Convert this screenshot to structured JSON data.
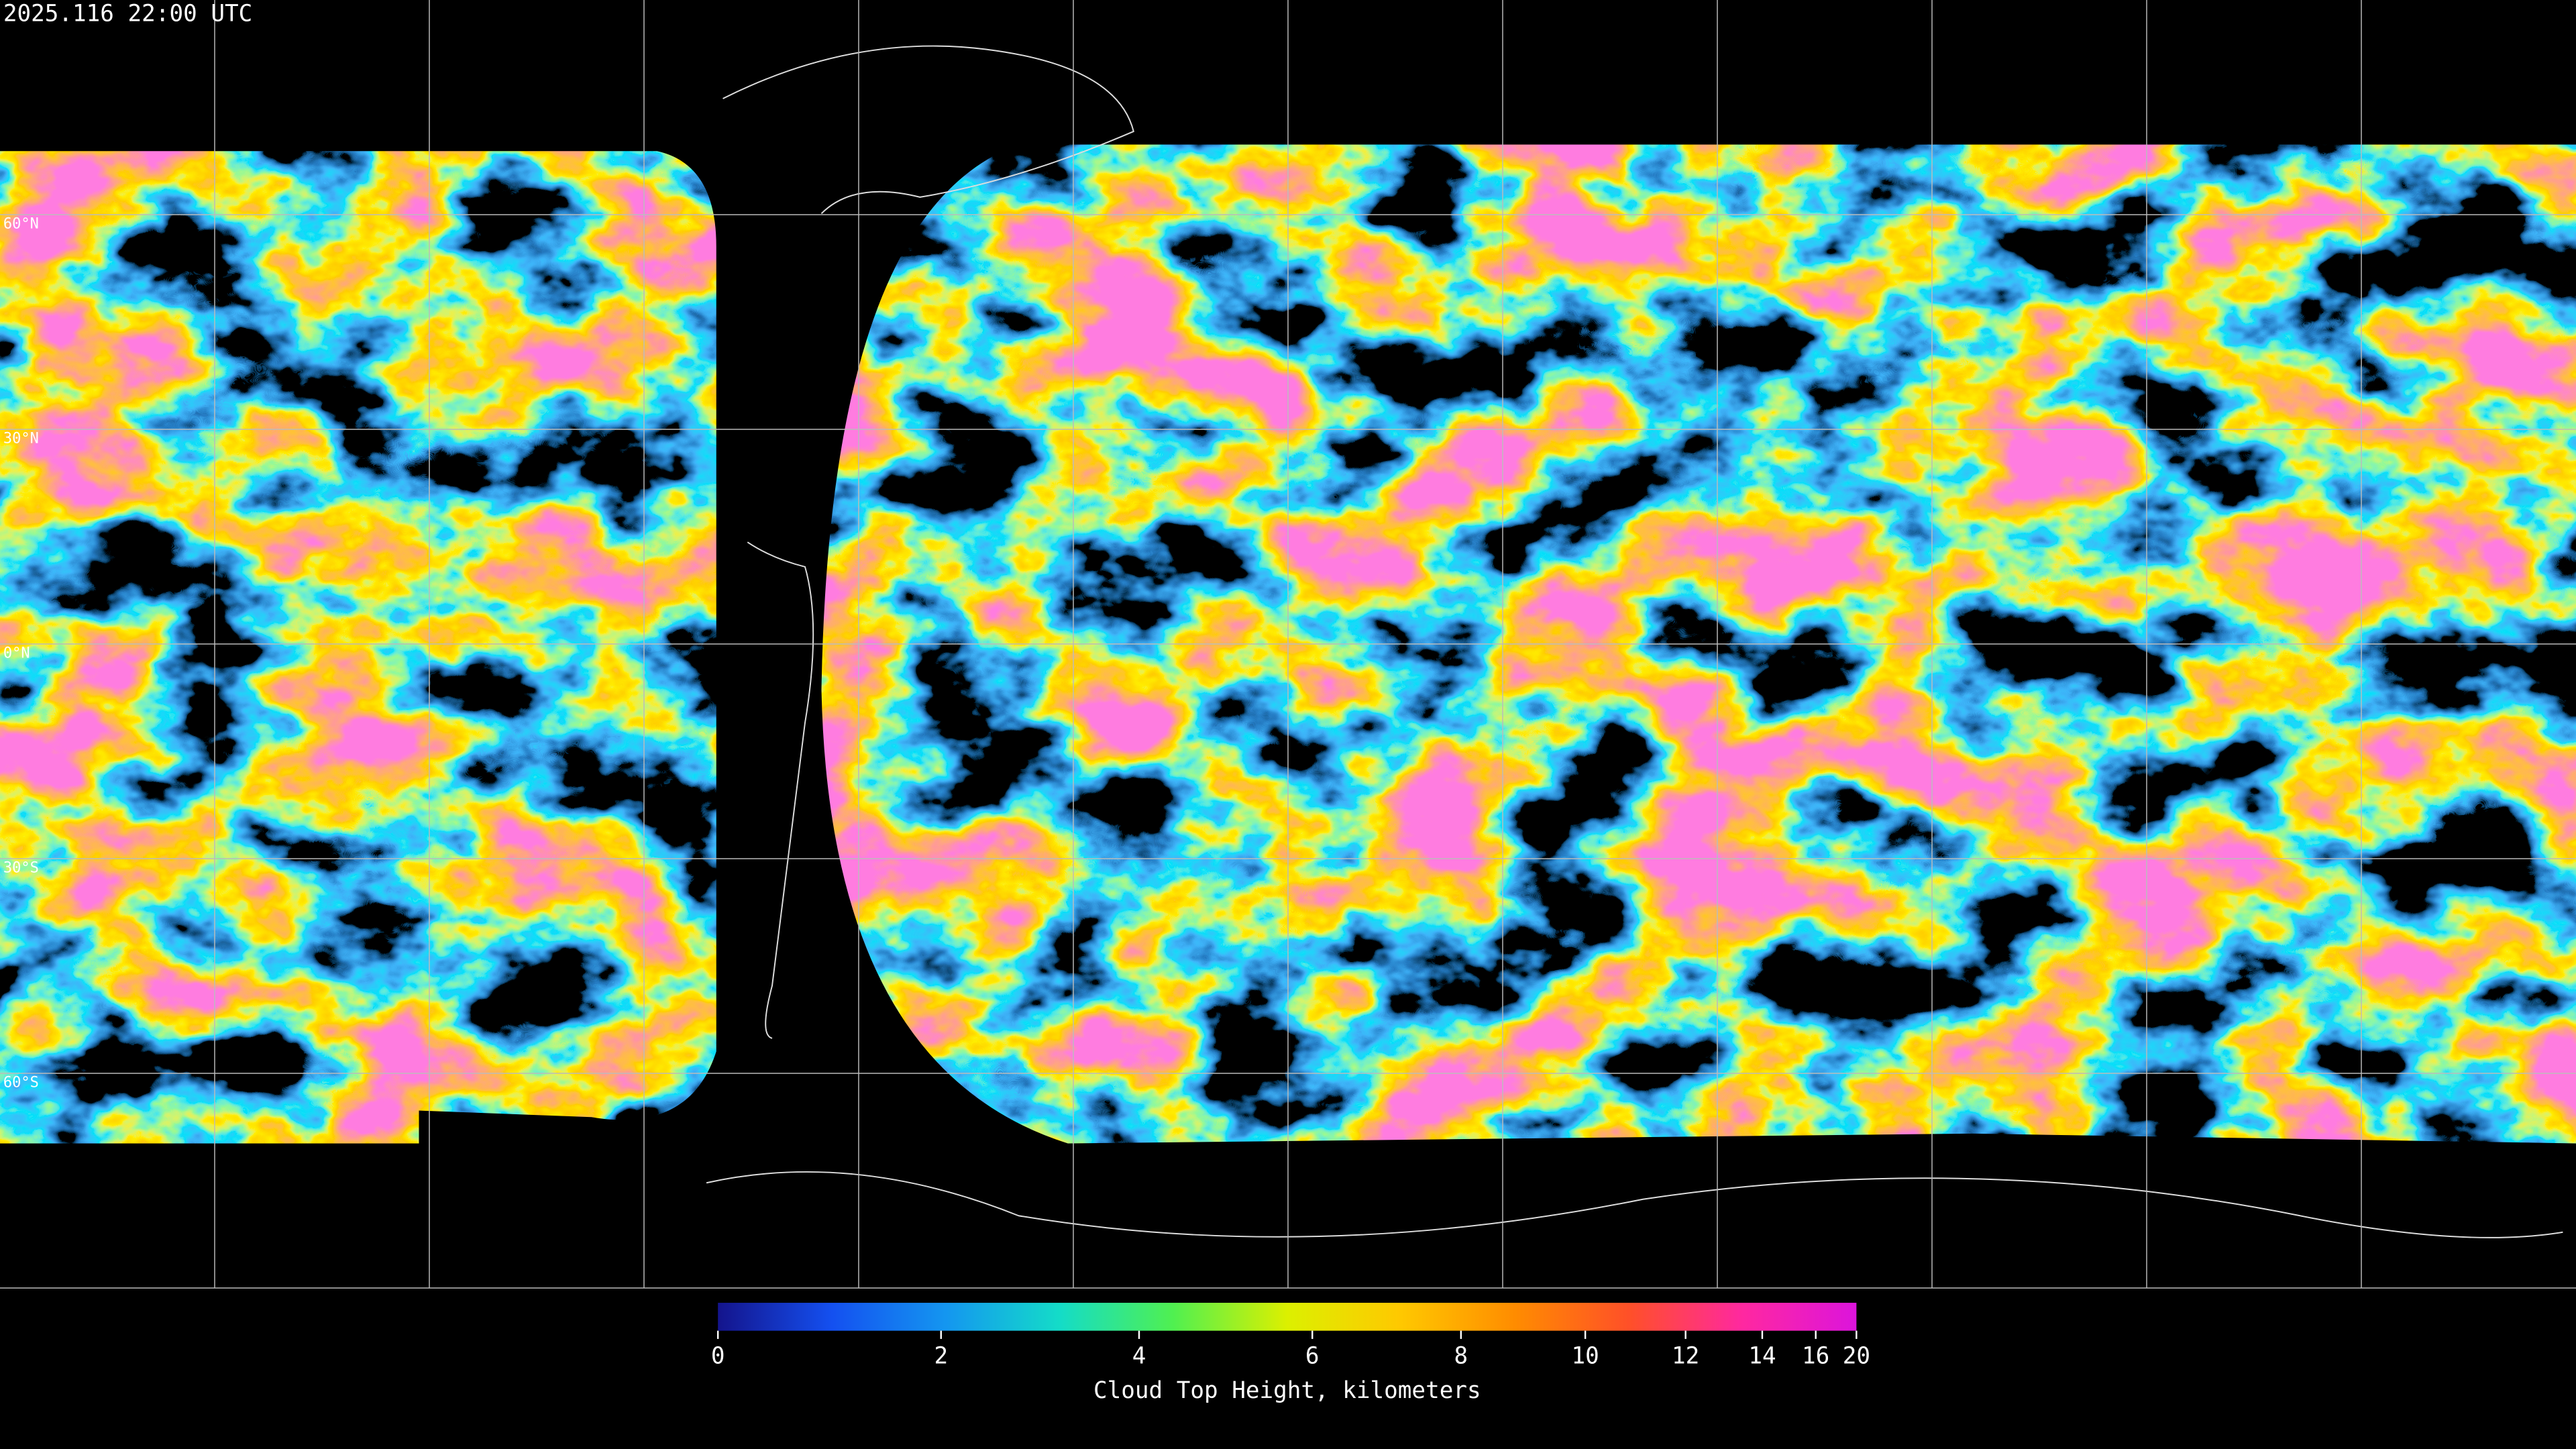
{
  "header": {
    "timestamp": "2025.116 22:00 UTC"
  },
  "map": {
    "latlim": [
      90,
      -90
    ],
    "latitude_lines": [
      {
        "value": 60,
        "label": "60°N"
      },
      {
        "value": 30,
        "label": "30°N"
      },
      {
        "value": 0,
        "label": "0°N"
      },
      {
        "value": -30,
        "label": "30°S"
      },
      {
        "value": -60,
        "label": "60°S"
      }
    ]
  },
  "colorbar": {
    "title": "Cloud Top Height, kilometers",
    "range": [
      0,
      20
    ],
    "ticks": [
      0,
      2,
      4,
      6,
      8,
      10,
      12,
      14,
      16,
      20
    ],
    "colors": [
      "#14148c",
      "#1450f0",
      "#1496f0",
      "#14dcc8",
      "#50f050",
      "#dcf000",
      "#ffc800",
      "#ff8c00",
      "#ff5028",
      "#ff28a0",
      "#dc14dc"
    ]
  }
}
